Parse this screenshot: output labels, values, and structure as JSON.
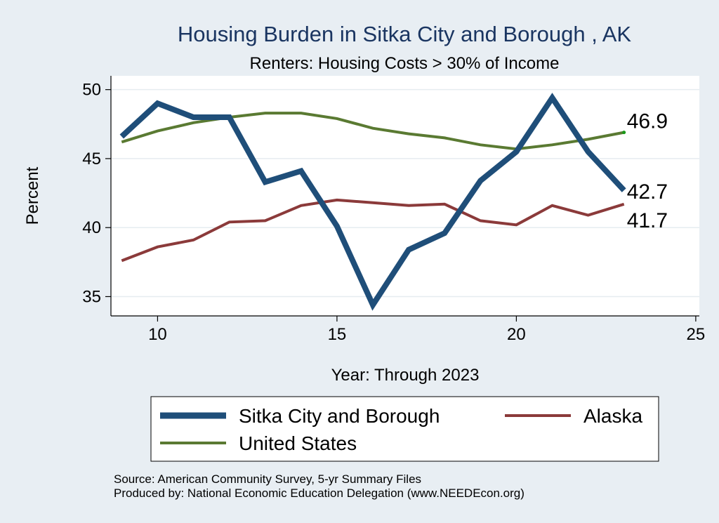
{
  "chart_data": {
    "type": "line",
    "title": "Housing Burden in Sitka City and Borough , AK",
    "subtitle": "Renters: Housing Costs > 30% of Income",
    "xlabel": "Year: Through 2023",
    "ylabel": "Percent",
    "xlim": [
      8.7,
      25.1
    ],
    "ylim": [
      33.6,
      51
    ],
    "xticks": [
      10,
      15,
      20,
      25
    ],
    "yticks": [
      35,
      40,
      45,
      50
    ],
    "grid": true,
    "legend_position": "bottom",
    "x": [
      9,
      10,
      11,
      12,
      13,
      14,
      15,
      16,
      17,
      18,
      19,
      20,
      21,
      22,
      23
    ],
    "series": [
      {
        "name": "Sitka City and Borough",
        "color": "#1f4e79",
        "values": [
          46.6,
          49.0,
          48.0,
          48.0,
          43.3,
          44.1,
          40.1,
          34.4,
          38.4,
          39.6,
          43.4,
          45.5,
          49.4,
          45.5,
          42.7
        ],
        "end_label": "42.7"
      },
      {
        "name": "Alaska",
        "color": "#8b3a3a",
        "values": [
          37.6,
          38.6,
          39.1,
          40.4,
          40.5,
          41.6,
          42.0,
          41.8,
          41.6,
          41.7,
          40.5,
          40.2,
          41.6,
          40.9,
          41.7
        ],
        "end_label": "41.7"
      },
      {
        "name": "United States",
        "color": "#5a7a32",
        "values": [
          46.2,
          47.0,
          47.6,
          48.0,
          48.3,
          48.3,
          47.9,
          47.2,
          46.8,
          46.5,
          46.0,
          45.7,
          46.0,
          46.4,
          46.9
        ],
        "end_label": "46.9"
      }
    ],
    "notes": [
      "Source: American Community Survey, 5-yr Summary Files",
      "Produced by: National Economic Education Delegation (www.NEEDEcon.org)"
    ]
  }
}
